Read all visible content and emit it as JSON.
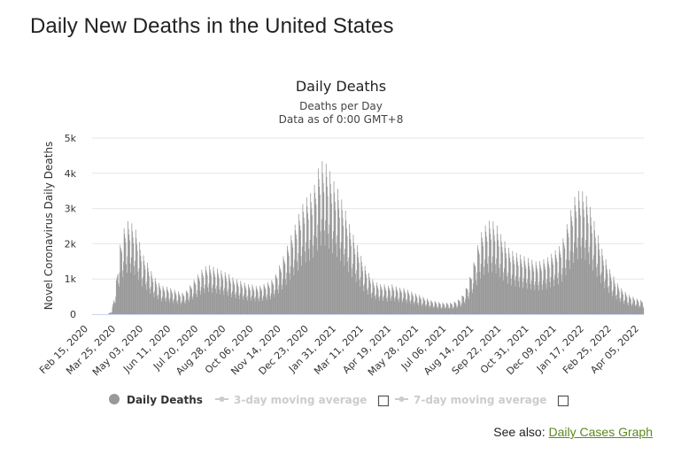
{
  "page": {
    "title": "Daily New Deaths in the United States"
  },
  "see_also": {
    "prefix": "See also:",
    "link_label": "Daily Cases Graph"
  },
  "colors": {
    "bar": "#999999",
    "grid": "#e6e6e6",
    "legend_inactive": "#cccccc",
    "link": "#5a8a1c"
  },
  "chart_data": {
    "type": "bar",
    "title": "Daily Deaths",
    "subtitle": "Deaths per Day",
    "subtitle2": "Data as of 0:00 GMT+8",
    "xlabel": "",
    "ylabel": "Novel Coronavirus Daily Deaths",
    "ylim": [
      0,
      5000
    ],
    "y_ticks": [
      "0",
      "1k",
      "2k",
      "3k",
      "4k",
      "5k"
    ],
    "x_start": "Feb 15, 2020",
    "x_end": "Apr 26, 2022",
    "x_tick_labels": [
      "Feb 15, 2020",
      "Mar 25, 2020",
      "May 03, 2020",
      "Jun 11, 2020",
      "Jul 20, 2020",
      "Aug 28, 2020",
      "Oct 06, 2020",
      "Nov 14, 2020",
      "Dec 23, 2020",
      "Jan 31, 2021",
      "Mar 11, 2021",
      "Apr 19, 2021",
      "May 28, 2021",
      "Jul 06, 2021",
      "Aug 14, 2021",
      "Sep 22, 2021",
      "Oct 31, 2021",
      "Dec 09, 2021",
      "Jan 17, 2022",
      "Feb 25, 2022",
      "Apr 05, 2022"
    ],
    "series_name": "Daily Deaths",
    "weekly_peak_deaths": [
      0,
      0,
      0,
      0,
      0,
      100,
      800,
      1900,
      2400,
      2650,
      2600,
      2450,
      2100,
      1700,
      1500,
      1250,
      1050,
      900,
      800,
      780,
      750,
      700,
      650,
      600,
      650,
      800,
      950,
      1100,
      1250,
      1350,
      1400,
      1350,
      1300,
      1250,
      1200,
      1150,
      1050,
      1000,
      950,
      900,
      850,
      850,
      800,
      800,
      850,
      900,
      950,
      1100,
      1350,
      1600,
      1900,
      2200,
      2500,
      2800,
      3100,
      3300,
      3400,
      3600,
      4100,
      4350,
      4300,
      4100,
      3800,
      3600,
      3300,
      3000,
      2600,
      2300,
      2000,
      1700,
      1400,
      1200,
      1000,
      900,
      850,
      850,
      800,
      850,
      800,
      750,
      750,
      700,
      650,
      600,
      550,
      500,
      450,
      400,
      380,
      350,
      330,
      330,
      320,
      350,
      400,
      500,
      700,
      1000,
      1400,
      1900,
      2300,
      2500,
      2650,
      2650,
      2550,
      2300,
      2100,
      1900,
      1800,
      1750,
      1700,
      1650,
      1600,
      1550,
      1500,
      1500,
      1550,
      1600,
      1700,
      1800,
      1900,
      2100,
      2500,
      2900,
      3300,
      3500,
      3500,
      3400,
      3100,
      2700,
      2300,
      1900,
      1600,
      1300,
      1100,
      900,
      750,
      650,
      550,
      500,
      450,
      400
    ],
    "legend": [
      {
        "label": "Daily Deaths",
        "active": true
      },
      {
        "label": "3-day moving average",
        "active": false
      },
      {
        "label": "7-day moving average",
        "active": false
      }
    ]
  }
}
